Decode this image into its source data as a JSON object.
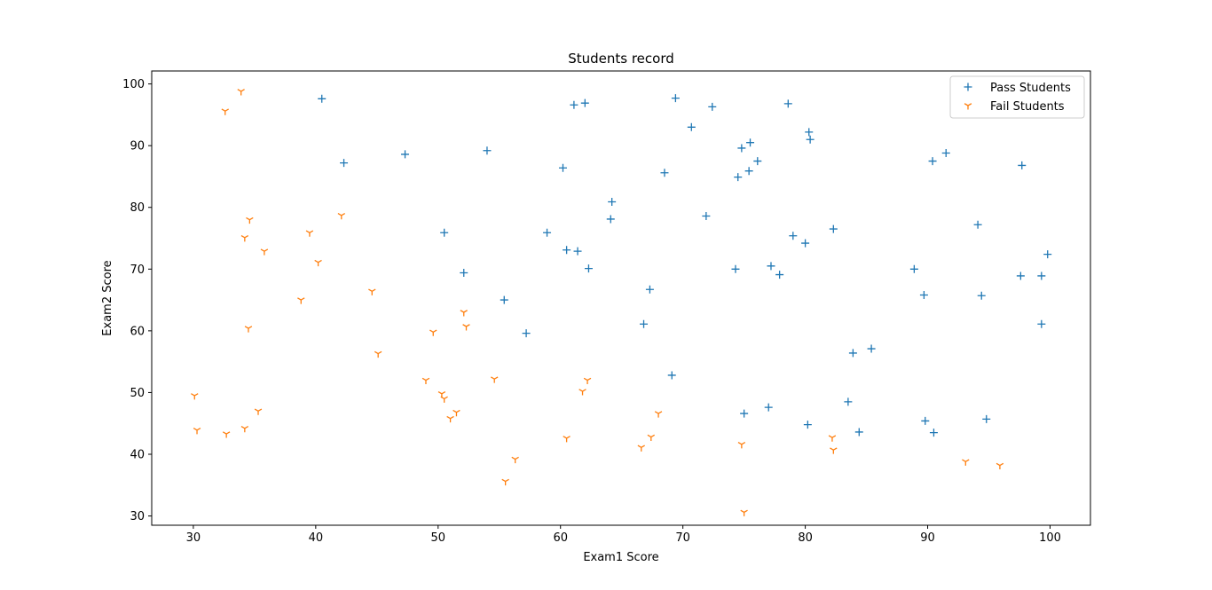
{
  "chart_data": {
    "type": "scatter",
    "title": "Students record",
    "xlabel": "Exam1 Score",
    "ylabel": "Exam2 Score",
    "xlim": [
      26.6,
      103.3
    ],
    "ylim": [
      28.5,
      102.1
    ],
    "xticks": [
      30,
      40,
      50,
      60,
      70,
      80,
      90,
      100
    ],
    "yticks": [
      30,
      40,
      50,
      60,
      70,
      80,
      90,
      100
    ],
    "grid": false,
    "legend_position": "top-right",
    "series": [
      {
        "name": "Pass Students",
        "marker": "plus",
        "color": "#1f77b4",
        "points": [
          [
            40.5,
            97.6
          ],
          [
            42.3,
            87.2
          ],
          [
            47.3,
            88.6
          ],
          [
            50.5,
            75.9
          ],
          [
            52.1,
            69.4
          ],
          [
            54.0,
            89.2
          ],
          [
            55.4,
            65.0
          ],
          [
            57.2,
            59.6
          ],
          [
            58.9,
            75.9
          ],
          [
            60.2,
            86.4
          ],
          [
            60.5,
            73.1
          ],
          [
            61.1,
            96.6
          ],
          [
            61.4,
            72.9
          ],
          [
            62.0,
            96.9
          ],
          [
            62.3,
            70.1
          ],
          [
            64.1,
            78.1
          ],
          [
            64.2,
            80.9
          ],
          [
            66.8,
            61.1
          ],
          [
            67.3,
            66.7
          ],
          [
            68.5,
            85.6
          ],
          [
            69.1,
            52.8
          ],
          [
            69.4,
            97.7
          ],
          [
            70.7,
            93.0
          ],
          [
            71.9,
            78.6
          ],
          [
            72.4,
            96.3
          ],
          [
            74.3,
            70.0
          ],
          [
            74.5,
            84.9
          ],
          [
            74.8,
            89.6
          ],
          [
            75.0,
            46.6
          ],
          [
            75.4,
            85.9
          ],
          [
            75.5,
            90.5
          ],
          [
            76.1,
            87.5
          ],
          [
            77.0,
            47.6
          ],
          [
            77.2,
            70.5
          ],
          [
            77.9,
            69.1
          ],
          [
            78.6,
            96.8
          ],
          [
            79.0,
            75.4
          ],
          [
            80.0,
            74.2
          ],
          [
            80.2,
            44.8
          ],
          [
            80.3,
            92.2
          ],
          [
            80.4,
            91.0
          ],
          [
            82.3,
            76.5
          ],
          [
            83.5,
            48.5
          ],
          [
            83.9,
            56.4
          ],
          [
            84.4,
            43.6
          ],
          [
            85.4,
            57.1
          ],
          [
            88.9,
            70.0
          ],
          [
            89.7,
            65.8
          ],
          [
            89.8,
            45.4
          ],
          [
            90.4,
            87.5
          ],
          [
            90.5,
            43.5
          ],
          [
            91.5,
            88.8
          ],
          [
            94.1,
            77.2
          ],
          [
            94.4,
            65.7
          ],
          [
            94.8,
            45.7
          ],
          [
            97.6,
            68.9
          ],
          [
            97.7,
            86.8
          ],
          [
            99.3,
            68.9
          ],
          [
            99.3,
            61.1
          ],
          [
            99.8,
            72.4
          ]
        ]
      },
      {
        "name": "Fail Students",
        "marker": "tri_down",
        "color": "#ff7f0e",
        "points": [
          [
            30.1,
            49.5
          ],
          [
            30.3,
            43.9
          ],
          [
            32.6,
            95.6
          ],
          [
            32.7,
            43.3
          ],
          [
            33.9,
            98.8
          ],
          [
            34.2,
            75.1
          ],
          [
            34.2,
            44.2
          ],
          [
            34.5,
            60.4
          ],
          [
            34.6,
            78.0
          ],
          [
            35.3,
            47.0
          ],
          [
            35.8,
            72.9
          ],
          [
            38.8,
            65.0
          ],
          [
            39.5,
            75.9
          ],
          [
            40.2,
            71.1
          ],
          [
            42.1,
            78.7
          ],
          [
            44.6,
            66.4
          ],
          [
            45.1,
            56.3
          ],
          [
            49.0,
            52.0
          ],
          [
            49.6,
            59.8
          ],
          [
            50.3,
            49.8
          ],
          [
            50.5,
            49.0
          ],
          [
            51.0,
            45.8
          ],
          [
            51.5,
            46.8
          ],
          [
            52.1,
            63.0
          ],
          [
            52.3,
            60.7
          ],
          [
            54.6,
            52.2
          ],
          [
            55.5,
            35.6
          ],
          [
            56.3,
            39.2
          ],
          [
            60.5,
            42.6
          ],
          [
            61.8,
            50.2
          ],
          [
            62.2,
            52.0
          ],
          [
            66.6,
            41.1
          ],
          [
            67.4,
            42.8
          ],
          [
            68.0,
            46.6
          ],
          [
            74.8,
            41.6
          ],
          [
            75.0,
            30.6
          ],
          [
            82.2,
            42.7
          ],
          [
            82.3,
            40.7
          ],
          [
            93.1,
            38.8
          ],
          [
            95.9,
            38.2
          ]
        ]
      }
    ]
  }
}
